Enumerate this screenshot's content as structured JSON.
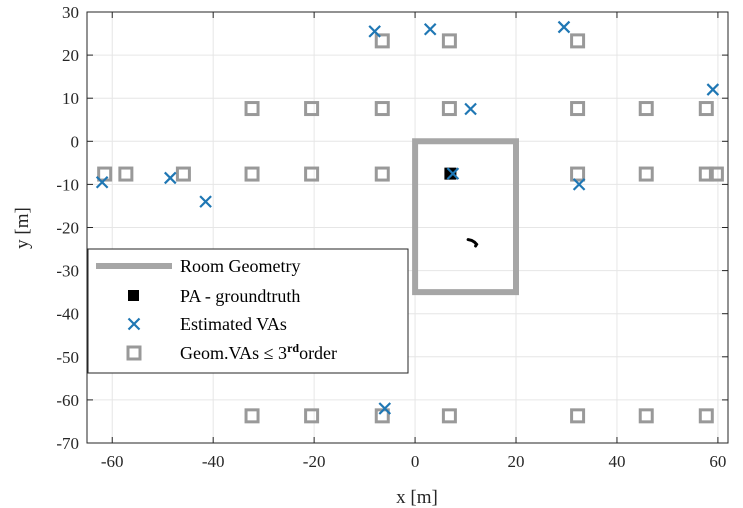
{
  "chart_data": {
    "type": "scatter",
    "xlabel": "x [m]",
    "ylabel": "y [m]",
    "xlim": [
      -65,
      62
    ],
    "ylim": [
      -70,
      30
    ],
    "xticks": [
      -60,
      -40,
      -20,
      0,
      20,
      40,
      60
    ],
    "yticks": [
      30,
      20,
      10,
      0,
      -10,
      -20,
      -30,
      -40,
      -50,
      -60,
      -70
    ],
    "grid": true,
    "legend_position": "left",
    "colors": {
      "room": "#a6a6a6",
      "pa": "#000000",
      "estimated": "#1f77b4",
      "geom": "#999999",
      "grid": "#e6e6e6",
      "axis": "#262626"
    },
    "legend": {
      "room": "Room Geometry",
      "pa": "PA - groundtruth",
      "estimated": "Estimated VAs",
      "geom_prefix": "Geom.VAs ≤ 3",
      "geom_sup": "rd",
      "geom_suffix": "order"
    },
    "room_geometry": [
      [
        0,
        0
      ],
      [
        20,
        0
      ],
      [
        20,
        -35
      ],
      [
        0,
        -35
      ],
      [
        0,
        0
      ]
    ],
    "pa_groundtruth": [
      [
        7,
        -7.5
      ]
    ],
    "trajectory": [
      [
        10.5,
        -22.8
      ],
      [
        11.2,
        -23.0
      ],
      [
        11.8,
        -23.4
      ],
      [
        12.2,
        -23.9
      ],
      [
        12.0,
        -24.3
      ]
    ],
    "estimated_vas": [
      [
        -62,
        -9.5
      ],
      [
        -48.5,
        -8.5
      ],
      [
        -41.5,
        -14
      ],
      [
        -8,
        25.5
      ],
      [
        3,
        26
      ],
      [
        11,
        7.5
      ],
      [
        7.5,
        -7.5
      ],
      [
        29.5,
        26.5
      ],
      [
        32.5,
        -10
      ],
      [
        59,
        12
      ],
      [
        -6,
        -62
      ]
    ],
    "geom_vas": [
      [
        -6.5,
        23.3
      ],
      [
        6.8,
        23.3
      ],
      [
        32.2,
        23.3
      ],
      [
        -32.3,
        7.6
      ],
      [
        -20.5,
        7.6
      ],
      [
        -6.5,
        7.6
      ],
      [
        6.8,
        7.6
      ],
      [
        32.2,
        7.6
      ],
      [
        45.8,
        7.6
      ],
      [
        57.7,
        7.6
      ],
      [
        -61.5,
        -7.6
      ],
      [
        -57.3,
        -7.6
      ],
      [
        -45.9,
        -7.6
      ],
      [
        -32.3,
        -7.6
      ],
      [
        -20.5,
        -7.6
      ],
      [
        -6.5,
        -7.6
      ],
      [
        32.2,
        -7.6
      ],
      [
        45.8,
        -7.6
      ],
      [
        57.7,
        -7.6
      ],
      [
        59.7,
        -7.6
      ],
      [
        -32.3,
        -63.7
      ],
      [
        -20.5,
        -63.7
      ],
      [
        -6.5,
        -63.7
      ],
      [
        6.8,
        -63.7
      ],
      [
        32.2,
        -63.7
      ],
      [
        45.8,
        -63.7
      ],
      [
        57.7,
        -63.7
      ]
    ]
  }
}
